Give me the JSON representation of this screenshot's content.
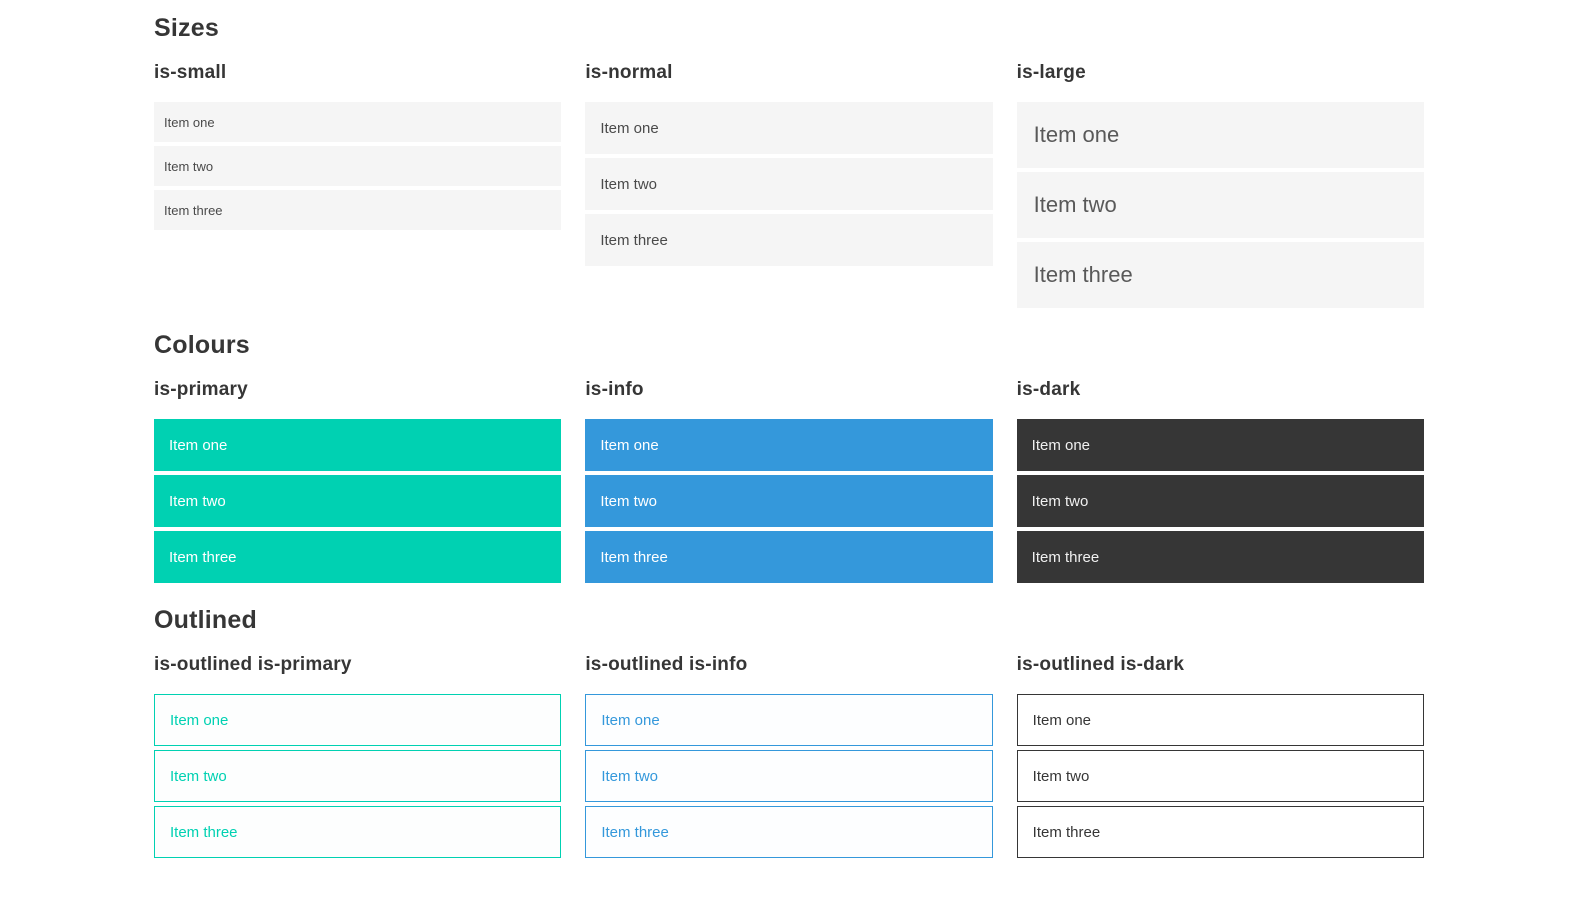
{
  "colors": {
    "primary": "#00d1b2",
    "info": "#3498db",
    "dark": "#363636",
    "light_item_bg": "#f5f5f5",
    "item_text": "#4a4a4a",
    "heading_text": "#363636"
  },
  "sections": [
    {
      "title": "Sizes",
      "groups": [
        {
          "heading": "is-small",
          "variant": "small",
          "items": [
            "Item one",
            "Item two",
            "Item three"
          ]
        },
        {
          "heading": "is-normal",
          "variant": "normal",
          "items": [
            "Item one",
            "Item two",
            "Item three"
          ]
        },
        {
          "heading": "is-large",
          "variant": "large",
          "items": [
            "Item one",
            "Item two",
            "Item three"
          ]
        }
      ]
    },
    {
      "title": "Colours",
      "groups": [
        {
          "heading": "is-primary",
          "variant": "primary",
          "items": [
            "Item one",
            "Item two",
            "Item three"
          ]
        },
        {
          "heading": "is-info",
          "variant": "info",
          "items": [
            "Item one",
            "Item two",
            "Item three"
          ]
        },
        {
          "heading": "is-dark",
          "variant": "dark",
          "items": [
            "Item one",
            "Item two",
            "Item three"
          ]
        }
      ]
    },
    {
      "title": "Outlined",
      "groups": [
        {
          "heading": "is-outlined is-primary",
          "variant": "outlined-primary",
          "items": [
            "Item one",
            "Item two",
            "Item three"
          ]
        },
        {
          "heading": "is-outlined is-info",
          "variant": "outlined-info",
          "items": [
            "Item one",
            "Item two",
            "Item three"
          ]
        },
        {
          "heading": "is-outlined is-dark",
          "variant": "outlined-dark",
          "items": [
            "Item one",
            "Item two",
            "Item three"
          ]
        }
      ]
    }
  ]
}
